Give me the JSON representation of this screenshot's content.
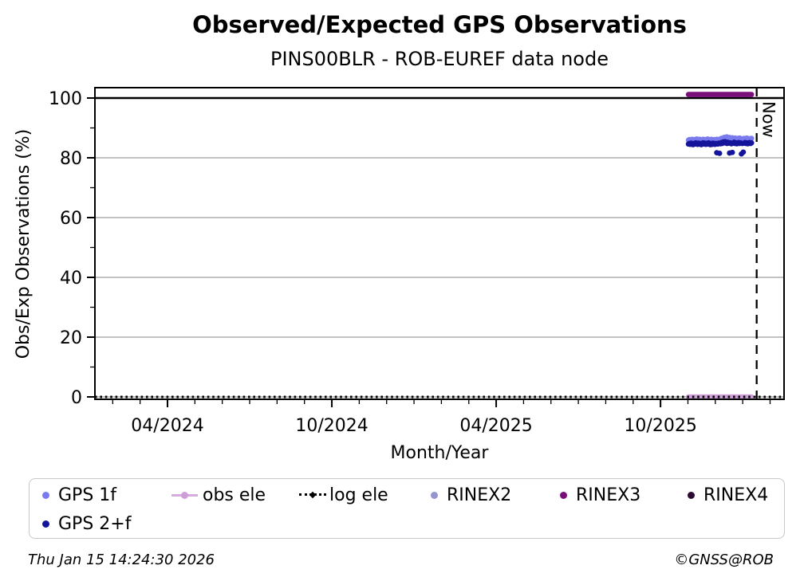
{
  "page": {
    "background": "#ffffff"
  },
  "chart_data": {
    "type": "scatter",
    "title": "Observed/Expected GPS Observations",
    "subtitle": "PINS00BLR - ROB-EUREF data node",
    "xlabel": "Month/Year",
    "ylabel": "Obs/Exp Observations (%)",
    "x_unit_note": "t = months since 2024-01-01",
    "xlim": [
      0.35,
      25.51
    ],
    "ylim": [
      -0.8,
      103.5
    ],
    "x_major_ticks": [
      {
        "t": 3,
        "label": "04/2024"
      },
      {
        "t": 9,
        "label": "10/2024"
      },
      {
        "t": 15,
        "label": "04/2025"
      },
      {
        "t": 21,
        "label": "10/2025"
      }
    ],
    "x_minor_tick_months": [
      1,
      2,
      3,
      4,
      5,
      6,
      7,
      8,
      9,
      10,
      11,
      12,
      13,
      14,
      15,
      16,
      17,
      18,
      19,
      20,
      21,
      22,
      23,
      24,
      25
    ],
    "y_major_ticks": [
      0,
      20,
      40,
      60,
      80,
      100
    ],
    "y_minor_ticks": [
      10,
      30,
      50,
      70,
      90
    ],
    "gridlines_y": [
      0,
      20,
      40,
      60,
      80
    ],
    "grid_color": "#b9b9b9",
    "reference_line_y": 100,
    "now_line": {
      "t": 24.51,
      "label": "Now",
      "style": "dashed"
    },
    "samples": {
      "t_start": 22.02,
      "t_end": 24.32,
      "count": 70,
      "note": "daily values, Nov 2025 - mid Jan 2026"
    },
    "series": [
      {
        "name": "obs ele",
        "color": "#cf9ed8",
        "style": "thick-line",
        "constant_value": 0
      },
      {
        "name": "log ele",
        "color": "#000000",
        "style": "dotted-line",
        "constant_value": 0,
        "full_width": true
      },
      {
        "name": "RINEX2",
        "color": "#9494cf",
        "style": "points",
        "values": []
      },
      {
        "name": "RINEX3",
        "color": "#7a0f7a",
        "style": "thick-line",
        "constant_value": 101.2
      },
      {
        "name": "RINEX4",
        "color": "#2b0a33",
        "style": "points",
        "values": []
      },
      {
        "name": "GPS 1f",
        "color": "#7b7bef",
        "style": "points",
        "values": [
          85.9,
          86.1,
          86.0,
          85.8,
          86.2,
          86.0,
          85.7,
          86.1,
          85.9,
          86.3,
          86.0,
          85.8,
          86.2,
          86.1,
          85.9,
          86.0,
          86.2,
          85.8,
          86.1,
          86.0,
          85.9,
          86.3,
          86.1,
          85.8,
          86.0,
          86.2,
          86.0,
          85.9,
          86.1,
          86.0,
          85.8,
          86.2,
          86.0,
          86.1,
          85.9,
          86.3,
          86.5,
          86.2,
          86.6,
          86.8,
          86.5,
          86.9,
          87.0,
          86.7,
          86.4,
          86.8,
          86.6,
          86.3,
          86.7,
          86.5,
          86.2,
          86.6,
          86.4,
          86.1,
          86.5,
          86.3,
          86.6,
          86.2,
          86.4,
          86.1,
          86.3,
          86.5,
          86.2,
          86.4,
          86.6,
          86.3,
          86.1,
          86.4,
          86.2,
          86.5
        ]
      },
      {
        "name": "GPS 2+f",
        "color": "#15159a",
        "style": "points",
        "values": [
          84.6,
          84.8,
          84.5,
          84.9,
          84.7,
          84.4,
          84.8,
          84.6,
          85.0,
          84.7,
          84.5,
          84.9,
          84.6,
          84.8,
          84.4,
          84.7,
          85.0,
          84.6,
          84.9,
          84.5,
          84.8,
          84.6,
          85.0,
          84.7,
          84.4,
          84.8,
          84.5,
          84.9,
          84.7,
          84.5,
          84.8,
          81.7,
          84.6,
          84.9,
          81.5,
          84.7,
          85.1,
          84.8,
          85.3,
          85.0,
          85.4,
          85.1,
          84.8,
          85.2,
          84.9,
          81.6,
          85.0,
          84.7,
          81.8,
          84.9,
          85.2,
          84.8,
          85.0,
          84.7,
          84.9,
          85.1,
          84.8,
          85.0,
          81.3,
          84.8,
          81.9,
          84.9,
          85.1,
          84.8,
          85.0,
          84.7,
          84.9,
          85.1,
          84.8,
          85.0
        ]
      }
    ]
  },
  "legend": {
    "items": [
      {
        "label": "GPS 1f",
        "marker": "dot",
        "color": "#7b7bef"
      },
      {
        "label": "obs ele",
        "marker": "line-dot",
        "color": "#cf9ed8"
      },
      {
        "label": "log ele",
        "marker": "dotted-line",
        "color": "#000000"
      },
      {
        "label": "RINEX2",
        "marker": "dot",
        "color": "#9494cf"
      },
      {
        "label": "RINEX3",
        "marker": "dot",
        "color": "#7a0f7a"
      },
      {
        "label": "RINEX4",
        "marker": "dot",
        "color": "#2b0a33"
      },
      {
        "label": "GPS 2+f",
        "marker": "dot",
        "color": "#15159a"
      }
    ]
  },
  "footer": {
    "timestamp": "Thu Jan 15 14:24:30 2026",
    "credit": "©GNSS@ROB"
  }
}
